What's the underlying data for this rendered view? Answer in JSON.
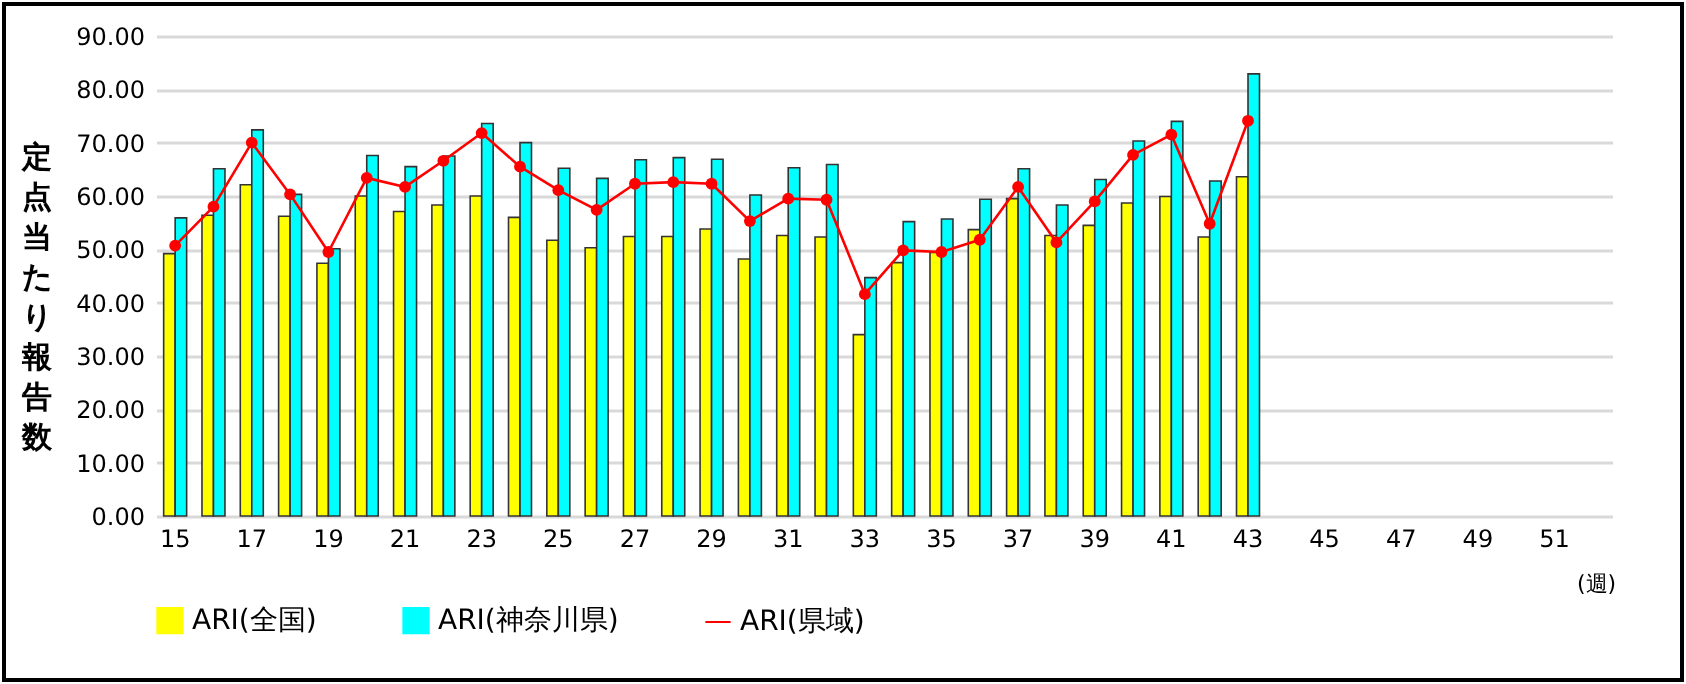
{
  "chart_data": {
    "type": "bar",
    "xlabel": "(週)",
    "ylabel": "定点当たり報告数",
    "categories": [
      "15",
      null,
      "17",
      null,
      "19",
      null,
      "21",
      null,
      "23",
      null,
      "25",
      null,
      "27",
      null,
      "29",
      null,
      "31",
      null,
      "33",
      null,
      "35",
      null,
      "37",
      null,
      "39",
      null,
      "41",
      null,
      "43",
      null,
      "45",
      null,
      "47",
      null,
      "49",
      null,
      "51",
      null
    ],
    "series": [
      {
        "name": "ARI(全国)",
        "color": "#ffff00",
        "values": [
          49.2,
          56.4,
          62.1,
          56.2,
          47.4,
          60.0,
          57.1,
          58.3,
          60.0,
          56.0,
          51.7,
          50.3,
          52.4,
          52.4,
          53.8,
          48.2,
          52.6,
          52.3,
          34.0,
          47.5,
          49.4,
          53.7,
          59.5,
          52.6,
          54.5,
          58.7,
          59.9,
          52.3,
          63.6,
          null,
          null,
          null,
          null,
          null,
          null,
          null,
          null,
          null
        ]
      },
      {
        "name": "ARI(神奈川県)",
        "color": "#00ffff",
        "values": [
          55.9,
          65.1,
          72.4,
          60.3,
          50.1,
          67.6,
          65.5,
          67.5,
          73.6,
          70.0,
          65.2,
          63.3,
          66.8,
          67.2,
          66.9,
          60.2,
          65.3,
          65.9,
          44.7,
          55.2,
          55.7,
          59.4,
          65.1,
          58.3,
          63.1,
          70.3,
          74.0,
          62.8,
          82.9,
          null,
          null,
          null,
          null,
          null,
          null,
          null,
          null,
          null
        ]
      },
      {
        "name": "ARI(県域)",
        "type": "line",
        "color": "#ff0000",
        "marker": "circle",
        "values": [
          50.7,
          58.0,
          70.0,
          60.3,
          49.5,
          63.4,
          61.7,
          66.6,
          71.8,
          65.5,
          61.1,
          57.4,
          62.3,
          62.6,
          62.3,
          55.3,
          59.5,
          59.3,
          41.6,
          49.8,
          49.5,
          51.8,
          61.7,
          51.3,
          59.0,
          67.7,
          71.5,
          54.8,
          74.1,
          null,
          null,
          null,
          null,
          null,
          null,
          null,
          null,
          null
        ]
      }
    ],
    "ylim": [
      0,
      90
    ],
    "yticks": [
      {
        "value": 0,
        "label": "0.00"
      },
      {
        "value": 10,
        "label": "10.00"
      },
      {
        "value": 20,
        "label": "20.00"
      },
      {
        "value": 30,
        "label": "30.00"
      },
      {
        "value": 40,
        "label": "40.00"
      },
      {
        "value": 50,
        "label": "50.00"
      },
      {
        "value": 60,
        "label": "60.00"
      },
      {
        "value": 70,
        "label": "70.00"
      },
      {
        "value": 80,
        "label": "80.00"
      },
      {
        "value": 90,
        "label": "90.00"
      }
    ],
    "grid": "y",
    "legend": "bottom"
  }
}
